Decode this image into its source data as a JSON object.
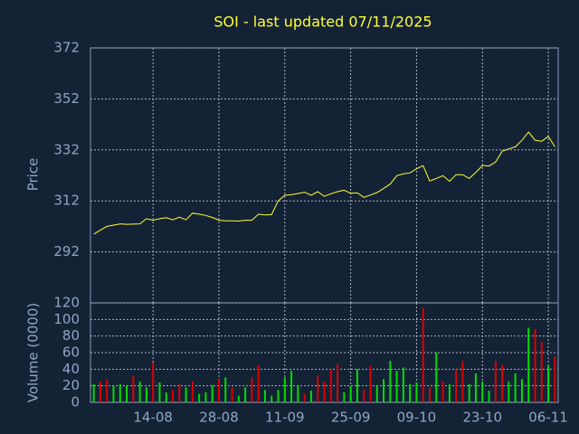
{
  "chart_data": [
    {
      "type": "line",
      "title": "SOI - last updated 07/11/2025",
      "ylabel": "Price",
      "color": "#ffff33",
      "categories": [
        null,
        null,
        null,
        null,
        null,
        null,
        null,
        null,
        null,
        "14-08",
        null,
        null,
        null,
        null,
        null,
        null,
        null,
        null,
        null,
        "28-08",
        null,
        null,
        null,
        null,
        null,
        null,
        null,
        null,
        null,
        "11-09",
        null,
        null,
        null,
        null,
        null,
        null,
        null,
        null,
        null,
        "25-09",
        null,
        null,
        null,
        null,
        null,
        null,
        null,
        null,
        null,
        "09-10",
        null,
        null,
        null,
        null,
        null,
        null,
        null,
        null,
        null,
        "23-10",
        null,
        null,
        null,
        null,
        null,
        null,
        null,
        null,
        null,
        "06-11",
        null
      ],
      "values": [
        299.0,
        300.5,
        302.0,
        302.5,
        303.0,
        302.8,
        302.9,
        303.0,
        305.0,
        304.4,
        305.0,
        305.4,
        304.6,
        305.6,
        304.6,
        307.2,
        306.8,
        306.3,
        305.5,
        304.4,
        304.2,
        304.2,
        304.1,
        304.4,
        304.4,
        306.8,
        306.5,
        306.6,
        312.0,
        314.2,
        314.4,
        314.9,
        315.4,
        314.2,
        315.6,
        313.8,
        314.8,
        315.6,
        316.2,
        315.0,
        315.2,
        313.4,
        314.3,
        315.3,
        316.9,
        318.6,
        321.9,
        322.6,
        323.0,
        324.6,
        325.8,
        319.8,
        320.8,
        321.9,
        319.7,
        322.3,
        322.3,
        320.8,
        323.2,
        325.9,
        325.7,
        327.2,
        331.5,
        332.4,
        333.2,
        335.8,
        339.0,
        335.8,
        335.4,
        337.3,
        333.2
      ],
      "ylim": [
        272,
        372
      ],
      "yticks": [
        292,
        312,
        332,
        352,
        372
      ],
      "grid": true
    },
    {
      "type": "bar",
      "ylabel": "Volume (0000)",
      "categories": [
        null,
        null,
        null,
        null,
        null,
        null,
        null,
        null,
        null,
        "14-08",
        null,
        null,
        null,
        null,
        null,
        null,
        null,
        null,
        null,
        "28-08",
        null,
        null,
        null,
        null,
        null,
        null,
        null,
        null,
        null,
        "11-09",
        null,
        null,
        null,
        null,
        null,
        null,
        null,
        null,
        null,
        "25-09",
        null,
        null,
        null,
        null,
        null,
        null,
        null,
        null,
        null,
        "09-10",
        null,
        null,
        null,
        null,
        null,
        null,
        null,
        null,
        null,
        "23-10",
        null,
        null,
        null,
        null,
        null,
        null,
        null,
        null,
        null,
        "06-11",
        null
      ],
      "values": [
        22,
        25,
        28,
        20,
        22,
        20,
        32,
        25,
        18,
        48,
        24,
        12,
        15,
        22,
        18,
        25,
        10,
        12,
        20,
        28,
        30,
        18,
        8,
        18,
        30,
        45,
        15,
        8,
        15,
        30,
        38,
        20,
        10,
        14,
        32,
        25,
        40,
        46,
        12,
        20,
        40,
        15,
        44,
        20,
        28,
        50,
        38,
        42,
        22,
        24,
        114,
        18,
        60,
        25,
        22,
        40,
        50,
        22,
        35,
        25,
        14,
        50,
        45,
        25,
        35,
        28,
        90,
        88,
        73,
        44,
        55
      ],
      "colors": [
        "#00dd00",
        "#dd0000",
        "#dd0000",
        "#00dd00",
        "#00dd00",
        "#00dd00",
        "#dd0000",
        "#00dd00",
        "#00dd00",
        "#dd0000",
        "#00dd00",
        "#00dd00",
        "#dd0000",
        "#dd0000",
        "#00dd00",
        "#dd0000",
        "#00dd00",
        "#00dd00",
        "#00dd00",
        "#dd0000",
        "#00dd00",
        "#dd0000",
        "#00dd00",
        "#00dd00",
        "#dd0000",
        "#dd0000",
        "#00dd00",
        "#00dd00",
        "#00dd00",
        "#00dd00",
        "#00dd00",
        "#00dd00",
        "#dd0000",
        "#00dd00",
        "#dd0000",
        "#dd0000",
        "#dd0000",
        "#dd0000",
        "#00dd00",
        "#00dd00",
        "#00dd00",
        "#dd0000",
        "#dd0000",
        "#00dd00",
        "#00dd00",
        "#00dd00",
        "#00dd00",
        "#00dd00",
        "#00dd00",
        "#00dd00",
        "#dd0000",
        "#dd0000",
        "#00dd00",
        "#dd0000",
        "#00dd00",
        "#dd0000",
        "#dd0000",
        "#00dd00",
        "#00dd00",
        "#00dd00",
        "#00dd00",
        "#dd0000",
        "#dd0000",
        "#00dd00",
        "#00dd00",
        "#00dd00",
        "#00dd00",
        "#dd0000",
        "#dd0000",
        "#00dd00",
        "#dd0000"
      ],
      "ylim": [
        0,
        120
      ],
      "yticks": [
        0,
        20,
        40,
        60,
        80,
        100,
        120
      ],
      "grid": true
    }
  ]
}
